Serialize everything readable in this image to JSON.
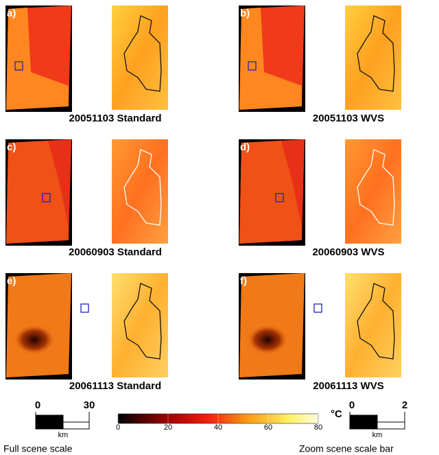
{
  "panels": [
    {
      "label": "a)",
      "caption": "20051103 Standard"
    },
    {
      "label": "b)",
      "caption": "20051103 WVS"
    },
    {
      "label": "c)",
      "caption": "20060903 Standard"
    },
    {
      "label": "d)",
      "caption": "20060903 WVS"
    },
    {
      "label": "e)",
      "caption": "20061113 Standard"
    },
    {
      "label": "f)",
      "caption": "20061113 WVS"
    }
  ],
  "full_scale_bar": {
    "ticks": [
      0,
      30
    ],
    "unit": "km",
    "caption": "Full scene scale"
  },
  "colorbar": {
    "range": [
      0,
      80
    ],
    "ticks": [
      0,
      20,
      40,
      60,
      80
    ],
    "unit": "°C"
  },
  "zoom_scale_bar": {
    "ticks": [
      0,
      2
    ],
    "unit": "km",
    "caption": "Zoom scene scale bar"
  }
}
